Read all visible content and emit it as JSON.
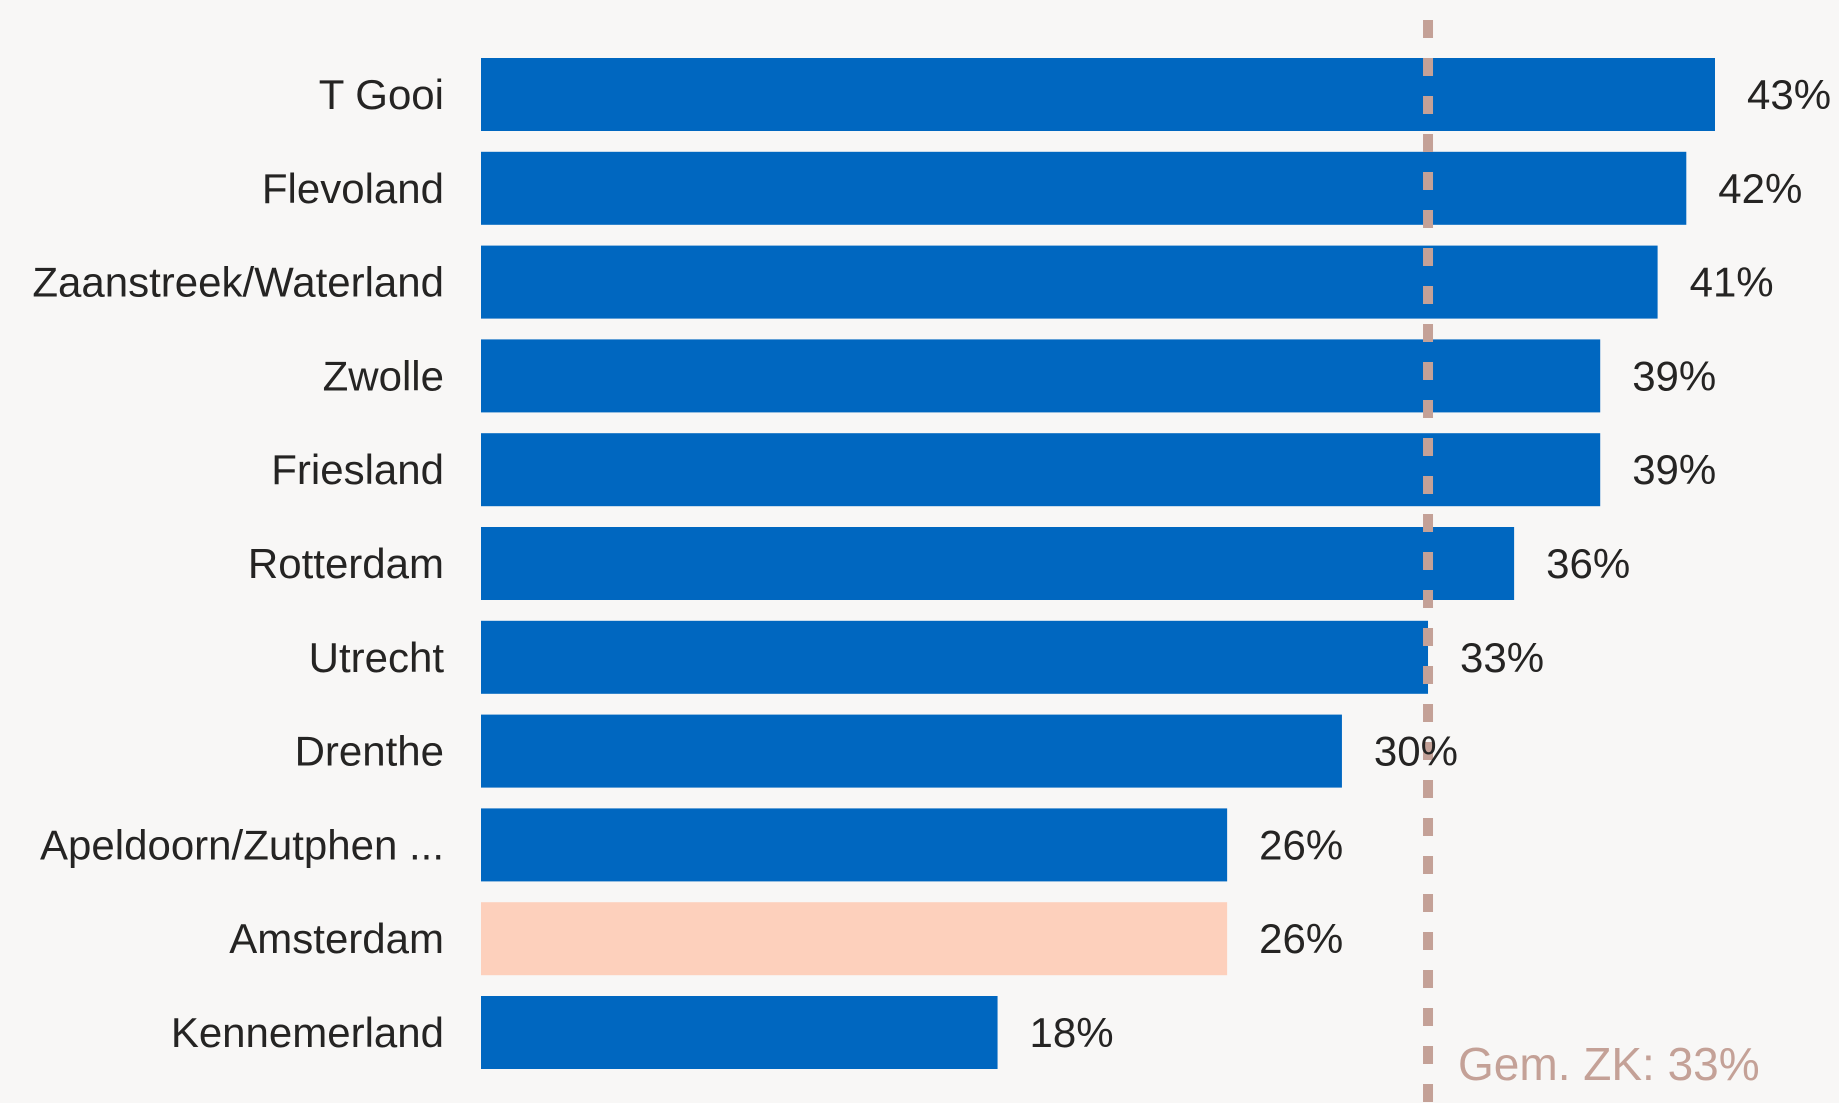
{
  "colors": {
    "background": "#f8f7f6",
    "bar": "#0067c0",
    "highlight_bar": "#fdd0bc",
    "reference_line": "#c4a197",
    "text": "#252423"
  },
  "chart_data": {
    "type": "bar",
    "orientation": "horizontal",
    "categories": [
      "T Gooi",
      "Flevoland",
      "Zaanstreek/Waterland",
      "Zwolle",
      "Friesland",
      "Rotterdam",
      "Utrecht",
      "Drenthe",
      "Apeldoorn/Zutphen ...",
      "Amsterdam",
      "Kennemerland"
    ],
    "values": [
      43,
      42,
      41,
      39,
      39,
      36,
      33,
      30,
      26,
      26,
      18
    ],
    "value_labels": [
      "43%",
      "42%",
      "41%",
      "39%",
      "39%",
      "36%",
      "33%",
      "30%",
      "26%",
      "26%",
      "18%"
    ],
    "highlight_category": "Amsterdam",
    "xlim": [
      0,
      43
    ],
    "reference_line": {
      "value": 33,
      "label": "Gem. ZK: 33%",
      "style": "dashed"
    },
    "title": "",
    "xlabel": "",
    "ylabel": "",
    "grid": false,
    "legend": "none"
  }
}
